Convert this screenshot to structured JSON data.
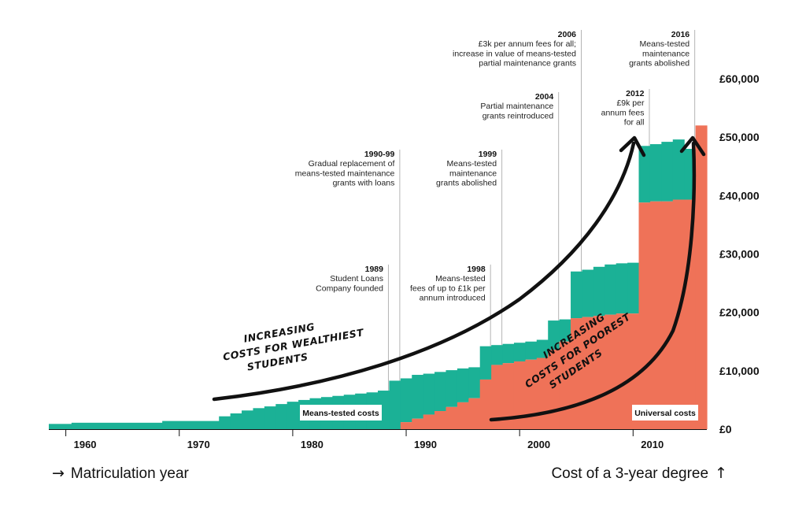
{
  "chart_data": {
    "type": "area",
    "x_label": "Matriculation year",
    "y_label": "Cost of a 3-year degree",
    "x_ticks": [
      "1960",
      "1970",
      "1980",
      "1990",
      "2000",
      "2010"
    ],
    "y_ticks": [
      "£0",
      "£10,000",
      "£20,000",
      "£30,000",
      "£40,000",
      "£50,000",
      "£60,000"
    ],
    "xlim": [
      1958.5,
      2016.5
    ],
    "ylim": [
      0,
      60000
    ],
    "colors": {
      "means_tested": "#1bb196",
      "universal": "#ef7258",
      "arrow": "#111111",
      "guide": "#b5b5b5"
    },
    "series": [
      {
        "name": "Means-tested costs",
        "color": "#1bb196",
        "x_start": [
          1958.5,
          1960.5,
          1968.5,
          1973.5,
          1974.5,
          1975.5,
          1976.5,
          1977.5,
          1978.5,
          1979.5,
          1980.5,
          1981.5,
          1982.5,
          1983.5,
          1984.5,
          1985.5,
          1986.5,
          1987.5,
          1988.5,
          1989.5,
          1990.5,
          1991.5,
          1992.5,
          1993.5,
          1994.5,
          1995.5,
          1996.5,
          1997.5,
          1998.5,
          1999.5,
          2000.5,
          2001.5,
          2002.5,
          2003.5,
          2004.5,
          2005.5,
          2006.5,
          2007.5,
          2008.5,
          2009.5,
          2010.5,
          2011.5,
          2012.5,
          2013.5,
          2014.5
        ],
        "x_end": [
          1960.5,
          1968.5,
          1973.5,
          1974.5,
          1975.5,
          1976.5,
          1977.5,
          1978.5,
          1979.5,
          1980.5,
          1981.5,
          1982.5,
          1983.5,
          1984.5,
          1985.5,
          1986.5,
          1987.5,
          1988.5,
          1989.5,
          1990.5,
          1991.5,
          1992.5,
          1993.5,
          1994.5,
          1995.5,
          1996.5,
          1997.5,
          1998.5,
          1999.5,
          2000.5,
          2001.5,
          2002.5,
          2003.5,
          2004.5,
          2005.5,
          2006.5,
          2007.5,
          2008.5,
          2009.5,
          2010.5,
          2011.5,
          2012.5,
          2013.5,
          2014.5,
          2015.5
        ],
        "y_top": [
          900,
          1100,
          1400,
          2200,
          2700,
          3200,
          3600,
          3900,
          4300,
          4700,
          5000,
          5300,
          5500,
          5700,
          5900,
          6100,
          6300,
          6600,
          8300,
          8700,
          9300,
          9500,
          9800,
          10100,
          10400,
          10600,
          14200,
          14400,
          14600,
          14800,
          15000,
          15300,
          18600,
          18800,
          27000,
          27300,
          27800,
          28200,
          28400,
          28500,
          48500,
          48800,
          49200,
          49600,
          48000
        ],
        "y_bottom": [
          0,
          0,
          0,
          0,
          0,
          0,
          0,
          0,
          0,
          0,
          0,
          0,
          0,
          0,
          0,
          0,
          0,
          0,
          0,
          1200,
          1800,
          2500,
          3100,
          3800,
          4600,
          5300,
          8500,
          11000,
          11300,
          11600,
          11900,
          12200,
          13600,
          15000,
          19000,
          19200,
          19400,
          19600,
          19800,
          19800,
          38800,
          39000,
          39000,
          39300,
          39300
        ]
      },
      {
        "name": "Universal costs",
        "color": "#ef7258",
        "x_start": [
          1988.5,
          1989.5,
          1990.5,
          1991.5,
          1992.5,
          1993.5,
          1994.5,
          1995.5,
          1996.5,
          1997.5,
          1998.5,
          1999.5,
          2000.5,
          2001.5,
          2002.5,
          2003.5,
          2004.5,
          2005.5,
          2006.5,
          2007.5,
          2008.5,
          2009.5,
          2010.5,
          2011.5,
          2012.5,
          2013.5,
          2014.5,
          2015.5
        ],
        "x_end": [
          1989.5,
          1990.5,
          1991.5,
          1992.5,
          1993.5,
          1994.5,
          1995.5,
          1996.5,
          1997.5,
          1998.5,
          1999.5,
          2000.5,
          2001.5,
          2002.5,
          2003.5,
          2004.5,
          2005.5,
          2006.5,
          2007.5,
          2008.5,
          2009.5,
          2010.5,
          2011.5,
          2012.5,
          2013.5,
          2014.5,
          2015.5,
          2016.5
        ],
        "y_top": [
          0,
          1200,
          1800,
          2500,
          3100,
          3800,
          4600,
          5300,
          8500,
          11000,
          11300,
          11600,
          11900,
          12200,
          13600,
          15000,
          19000,
          19200,
          19400,
          19600,
          19800,
          19800,
          38800,
          39000,
          39000,
          39300,
          39300,
          52000
        ]
      }
    ],
    "series_labels": [
      "Means-tested costs",
      "Universal costs"
    ],
    "annotations": [
      {
        "year": "1989",
        "lines": [
          "Student Loans",
          "Company founded"
        ],
        "x": 1988.4
      },
      {
        "year": "1990-99",
        "lines": [
          "Gradual replacement of",
          "means-tested maintenance",
          "grants with loans"
        ],
        "x": 1989.4
      },
      {
        "year": "1998",
        "lines": [
          "Means-tested",
          "fees of up to £1k per",
          "annum introduced"
        ],
        "x": 1997.4
      },
      {
        "year": "1999",
        "lines": [
          "Means-tested",
          "maintenance",
          "grants abolished"
        ],
        "x": 1998.4
      },
      {
        "year": "2004",
        "lines": [
          "Partial maintenance",
          "grants reintroduced"
        ],
        "x": 2003.4
      },
      {
        "year": "2006",
        "lines": [
          "£3k per annum fees for all;",
          "increase in value of means-tested",
          "partial maintenance grants"
        ],
        "x": 2005.4
      },
      {
        "year": "2012",
        "lines": [
          "£9k per",
          "annum fees",
          "for all"
        ],
        "x": 2011.4
      },
      {
        "year": "2016",
        "lines": [
          "Means-tested",
          "maintenance",
          "grants abolished"
        ],
        "x": 2015.4
      }
    ],
    "handwritten": {
      "wealthiest": [
        "INCREASING",
        "COSTS FOR WEALTHIEST",
        "STUDENTS"
      ],
      "poorest": [
        "INCREASING",
        "COSTS FOR POOREST",
        "STUDENTS"
      ]
    },
    "grid": false,
    "legend": "inline labels"
  }
}
